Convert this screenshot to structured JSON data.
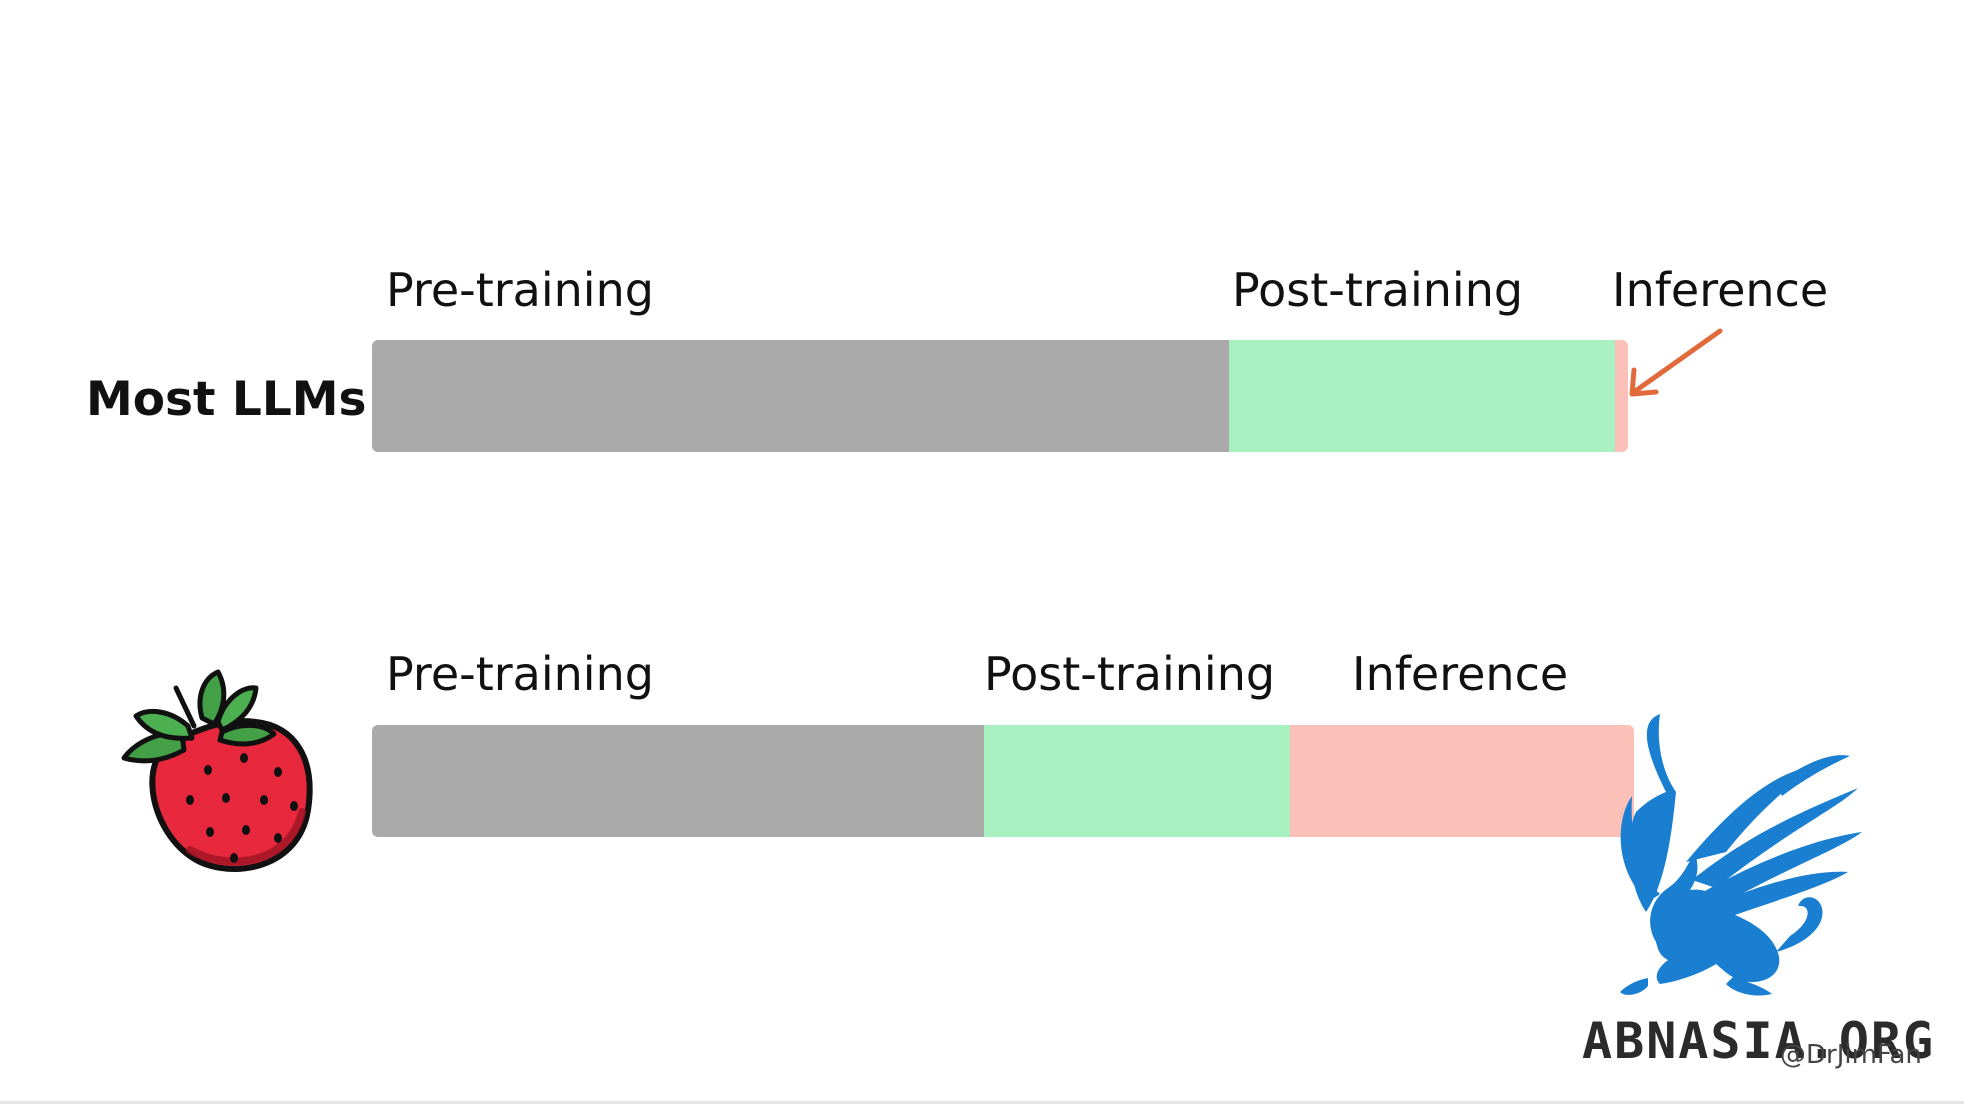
{
  "rows": [
    {
      "label": "Most LLMs",
      "segments": [
        {
          "label": "Pre-training",
          "color": "#aaaaaa",
          "fraction": 0.682
        },
        {
          "label": "Post-training",
          "color": "#a8f0c0",
          "fraction": 0.308
        },
        {
          "label": "Inference",
          "color": "#fbc0b8",
          "fraction": 0.01
        }
      ]
    },
    {
      "label_icon": "strawberry-icon",
      "segments": [
        {
          "label": "Pre-training",
          "color": "#aaaaaa",
          "fraction": 0.485
        },
        {
          "label": "Post-training",
          "color": "#a8f0c0",
          "fraction": 0.243
        },
        {
          "label": "Inference",
          "color": "#fbc0b8",
          "fraction": 0.272
        }
      ]
    }
  ],
  "annotation": {
    "arrow_color": "#e06a3c",
    "icon": "arrow-icon"
  },
  "credit": "@DrJimFan",
  "watermark": {
    "text": "ABNASIA.ORG",
    "icon": "griffin-logo-icon",
    "color": "#1a7fd0"
  }
}
